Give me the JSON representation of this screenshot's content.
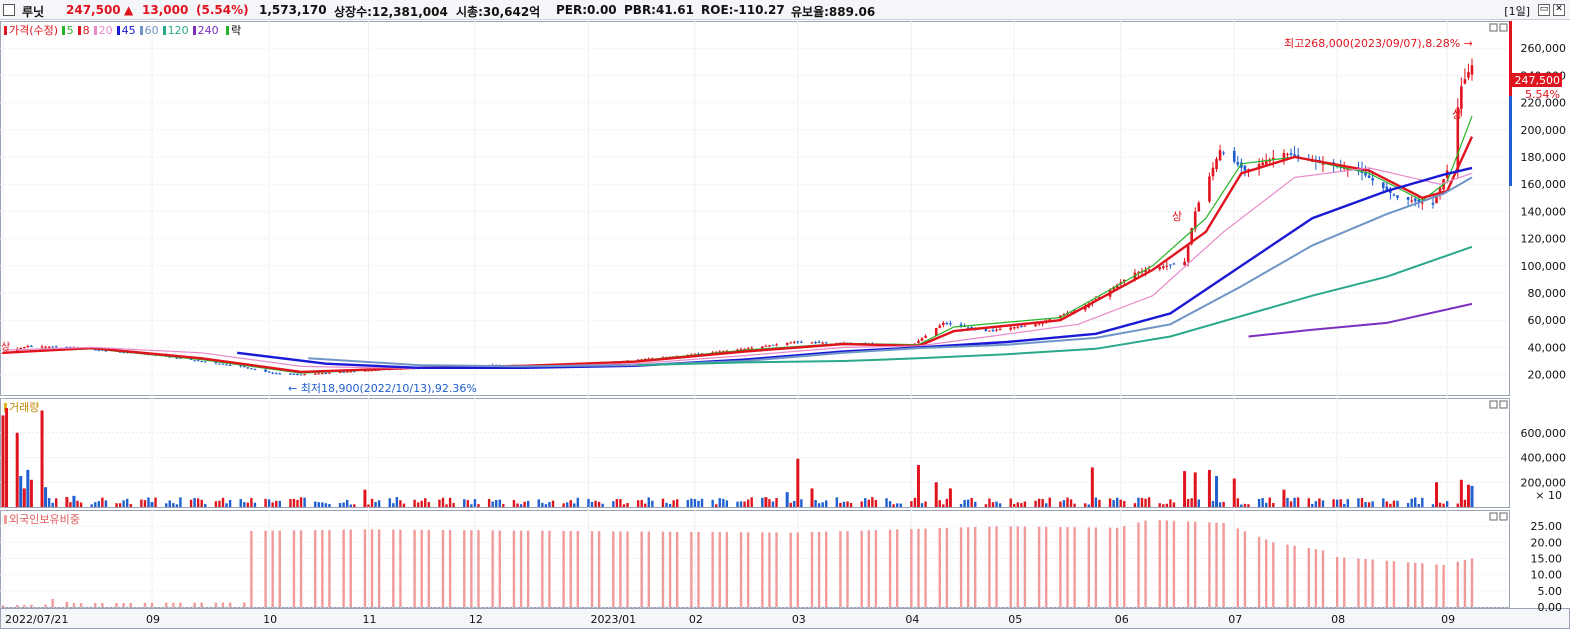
{
  "header": {
    "name": "루닛",
    "price": "247,500",
    "change_arrow": "▲",
    "change": "13,000",
    "change_pct": "(5.54%)",
    "volume": "1,573,170",
    "listed_shares": "상장수:12,381,004",
    "market_cap": "시총:30,642억",
    "per": "PER:0.00",
    "pbr": "PBR:41.61",
    "roe": "ROE:-110.27",
    "float_rate": "유보율:889.06",
    "timeframe": "[1일]"
  },
  "legend": {
    "price_label": "가격(수정)",
    "ma": [
      {
        "label": "5",
        "color": "#27b327"
      },
      {
        "label": "8",
        "color": "#e0141e"
      },
      {
        "label": "20",
        "color": "#e889c9"
      },
      {
        "label": "45",
        "color": "#1a1ad6"
      },
      {
        "label": "60",
        "color": "#6f95c6"
      },
      {
        "label": "120",
        "color": "#2aa88a"
      },
      {
        "label": "240",
        "color": "#7b2fbf"
      }
    ],
    "down_label": "락",
    "volume_label": "거래량",
    "foreign_label": "외국인보유비중"
  },
  "colors": {
    "up": "#e0141e",
    "down": "#1f5fcf",
    "foreign_bar": "#f29a9a"
  },
  "chart_data": [
    {
      "type": "line",
      "panel": "price",
      "y_ticks": [
        20000,
        40000,
        60000,
        80000,
        100000,
        120000,
        140000,
        160000,
        180000,
        200000,
        220000,
        240000,
        260000
      ],
      "y_tick_labels": [
        "20,000",
        "40,000",
        "60,000",
        "80,000",
        "100,000",
        "120,000",
        "140,000",
        "160,000",
        "180,000",
        "200,000",
        "220,000",
        "240,000",
        "260,000"
      ],
      "ylim": [
        5000,
        280000
      ],
      "price_points": [
        [
          "2022-07-21",
          36000
        ],
        [
          "2022-07-28",
          41000
        ],
        [
          "2022-08-08",
          40000
        ],
        [
          "2022-08-22",
          37000
        ],
        [
          "2022-09-01",
          35000
        ],
        [
          "2022-09-14",
          30000
        ],
        [
          "2022-09-26",
          26000
        ],
        [
          "2022-10-05",
          21000
        ],
        [
          "2022-10-13",
          20000
        ],
        [
          "2022-10-25",
          22000
        ],
        [
          "2022-11-07",
          24000
        ],
        [
          "2022-11-21",
          26000
        ],
        [
          "2022-12-05",
          27000
        ],
        [
          "2022-12-19",
          26000
        ],
        [
          "2023-01-02",
          27000
        ],
        [
          "2023-01-16",
          31000
        ],
        [
          "2023-02-01",
          35000
        ],
        [
          "2023-02-15",
          39000
        ],
        [
          "2023-03-01",
          44000
        ],
        [
          "2023-03-15",
          43000
        ],
        [
          "2023-04-03",
          41000
        ],
        [
          "2023-04-12",
          58000
        ],
        [
          "2023-04-24",
          52000
        ],
        [
          "2023-05-08",
          57000
        ],
        [
          "2023-05-22",
          70000
        ],
        [
          "2023-06-05",
          95000
        ],
        [
          "2023-06-19",
          103000
        ],
        [
          "2023-06-22",
          140000
        ],
        [
          "2023-06-29",
          185000
        ],
        [
          "2023-07-06",
          170000
        ],
        [
          "2023-07-17",
          183000
        ],
        [
          "2023-07-28",
          175000
        ],
        [
          "2023-08-07",
          170000
        ],
        [
          "2023-08-18",
          150000
        ],
        [
          "2023-08-28",
          145000
        ],
        [
          "2023-09-01",
          170000
        ],
        [
          "2023-09-05",
          232000
        ],
        [
          "2023-09-08",
          247500
        ]
      ],
      "series": [
        {
          "name": "5",
          "color": "#27b327",
          "points": [
            [
              "2022-07-21",
              36000
            ],
            [
              "2022-08-15",
              39000
            ],
            [
              "2022-09-15",
              31000
            ],
            [
              "2022-10-13",
              21000
            ],
            [
              "2022-11-15",
              25000
            ],
            [
              "2022-12-15",
              26500
            ],
            [
              "2023-01-15",
              30000
            ],
            [
              "2023-02-15",
              38000
            ],
            [
              "2023-03-15",
              43000
            ],
            [
              "2023-04-05",
              42000
            ],
            [
              "2023-04-15",
              55000
            ],
            [
              "2023-05-15",
              62000
            ],
            [
              "2023-06-10",
              100000
            ],
            [
              "2023-06-25",
              135000
            ],
            [
              "2023-07-05",
              175000
            ],
            [
              "2023-07-20",
              180000
            ],
            [
              "2023-08-10",
              168000
            ],
            [
              "2023-08-25",
              148000
            ],
            [
              "2023-09-01",
              162000
            ],
            [
              "2023-09-08",
              210000
            ]
          ]
        },
        {
          "name": "8",
          "color": "#e0141e",
          "points": [
            [
              "2022-07-21",
              36000
            ],
            [
              "2022-08-15",
              39500
            ],
            [
              "2022-09-15",
              32000
            ],
            [
              "2022-10-13",
              22000
            ],
            [
              "2022-11-15",
              25000
            ],
            [
              "2022-12-15",
              26500
            ],
            [
              "2023-01-15",
              29500
            ],
            [
              "2023-02-15",
              37000
            ],
            [
              "2023-03-15",
              42500
            ],
            [
              "2023-04-05",
              41000
            ],
            [
              "2023-04-15",
              52000
            ],
            [
              "2023-05-15",
              60000
            ],
            [
              "2023-06-10",
              97000
            ],
            [
              "2023-06-25",
              125000
            ],
            [
              "2023-07-05",
              168000
            ],
            [
              "2023-07-20",
              180000
            ],
            [
              "2023-08-10",
              170000
            ],
            [
              "2023-08-25",
              150000
            ],
            [
              "2023-09-01",
              155000
            ],
            [
              "2023-09-08",
              195000
            ]
          ]
        },
        {
          "name": "20",
          "color": "#e889c9",
          "points": [
            [
              "2022-07-21",
              38000
            ],
            [
              "2022-08-15",
              40000
            ],
            [
              "2022-09-15",
              36000
            ],
            [
              "2022-10-13",
              26000
            ],
            [
              "2022-11-15",
              24500
            ],
            [
              "2022-12-15",
              26000
            ],
            [
              "2023-01-15",
              28000
            ],
            [
              "2023-02-15",
              34000
            ],
            [
              "2023-03-15",
              40000
            ],
            [
              "2023-04-05",
              41000
            ],
            [
              "2023-04-25",
              48000
            ],
            [
              "2023-05-20",
              57000
            ],
            [
              "2023-06-10",
              78000
            ],
            [
              "2023-06-30",
              125000
            ],
            [
              "2023-07-20",
              165000
            ],
            [
              "2023-08-10",
              172000
            ],
            [
              "2023-08-30",
              160000
            ],
            [
              "2023-09-08",
              168000
            ]
          ]
        },
        {
          "name": "45",
          "color": "#1a1ad6",
          "points": [
            [
              "2022-09-25",
              36000
            ],
            [
              "2022-10-20",
              28000
            ],
            [
              "2022-11-15",
              25000
            ],
            [
              "2022-12-15",
              25000
            ],
            [
              "2023-01-15",
              26500
            ],
            [
              "2023-02-15",
              31000
            ],
            [
              "2023-03-15",
              37000
            ],
            [
              "2023-04-05",
              40000
            ],
            [
              "2023-04-30",
              44000
            ],
            [
              "2023-05-25",
              50000
            ],
            [
              "2023-06-15",
              65000
            ],
            [
              "2023-07-05",
              100000
            ],
            [
              "2023-07-25",
              135000
            ],
            [
              "2023-08-15",
              155000
            ],
            [
              "2023-08-31",
              167000
            ],
            [
              "2023-09-08",
              172000
            ]
          ]
        },
        {
          "name": "60",
          "color": "#6f95c6",
          "points": [
            [
              "2022-10-15",
              32000
            ],
            [
              "2022-11-15",
              27000
            ],
            [
              "2022-12-15",
              26000
            ],
            [
              "2023-01-15",
              27000
            ],
            [
              "2023-02-15",
              30000
            ],
            [
              "2023-03-15",
              36000
            ],
            [
              "2023-04-05",
              39500
            ],
            [
              "2023-04-30",
              42000
            ],
            [
              "2023-05-25",
              47000
            ],
            [
              "2023-06-15",
              57000
            ],
            [
              "2023-07-05",
              85000
            ],
            [
              "2023-07-25",
              115000
            ],
            [
              "2023-08-15",
              138000
            ],
            [
              "2023-08-31",
              153000
            ],
            [
              "2023-09-08",
              165000
            ]
          ]
        },
        {
          "name": "120",
          "color": "#2aa88a",
          "points": [
            [
              "2023-01-16",
              27000
            ],
            [
              "2023-02-15",
              29000
            ],
            [
              "2023-03-15",
              30000
            ],
            [
              "2023-04-05",
              32000
            ],
            [
              "2023-04-30",
              35000
            ],
            [
              "2023-05-25",
              39000
            ],
            [
              "2023-06-15",
              48000
            ],
            [
              "2023-07-05",
              63000
            ],
            [
              "2023-07-25",
              78000
            ],
            [
              "2023-08-15",
              92000
            ],
            [
              "2023-09-08",
              114000
            ]
          ]
        },
        {
          "name": "240",
          "color": "#7b2fbf",
          "points": [
            [
              "2023-07-07",
              48000
            ],
            [
              "2023-07-25",
              53000
            ],
            [
              "2023-08-15",
              58000
            ],
            [
              "2023-09-08",
              72000
            ]
          ]
        }
      ],
      "annotations": {
        "high": "최고268,000(2023/09/07),8.28%",
        "low": "최저18,900(2022/10/13),92.36%",
        "last_price": "247,500",
        "last_pct": "5.54%",
        "limit_up": "상"
      }
    },
    {
      "type": "bar",
      "panel": "volume",
      "y_ticks": [
        200000,
        400000,
        600000
      ],
      "y_tick_labels": [
        "200,000",
        "400,000",
        "600,000"
      ],
      "y_unit": "× 10",
      "ylim": [
        0,
        800000
      ],
      "bars": [
        [
          "2022-07-21",
          740000,
          "up"
        ],
        [
          "2022-07-22",
          800000,
          "up"
        ],
        [
          "2022-07-25",
          600000,
          "up"
        ],
        [
          "2022-07-26",
          250000,
          "down"
        ],
        [
          "2022-07-27",
          150000,
          "up"
        ],
        [
          "2022-07-28",
          300000,
          "down"
        ],
        [
          "2022-07-29",
          220000,
          "up"
        ],
        [
          "2022-08-01",
          780000,
          "up"
        ],
        [
          "2022-08-02",
          160000,
          "down"
        ],
        [
          "2022-08-08",
          80000,
          "up"
        ],
        [
          "2022-08-10",
          90000,
          "down"
        ],
        [
          "2022-09-01",
          40000,
          "down"
        ],
        [
          "2022-10-31",
          140000,
          "up"
        ],
        [
          "2023-02-21",
          80000,
          "up"
        ],
        [
          "2023-02-27",
          120000,
          "down"
        ],
        [
          "2023-03-02",
          390000,
          "up"
        ],
        [
          "2023-03-06",
          150000,
          "up"
        ],
        [
          "2023-04-05",
          340000,
          "up"
        ],
        [
          "2023-04-10",
          200000,
          "up"
        ],
        [
          "2023-04-14",
          150000,
          "up"
        ],
        [
          "2023-05-24",
          320000,
          "up"
        ],
        [
          "2023-06-19",
          290000,
          "up"
        ],
        [
          "2023-06-22",
          280000,
          "up"
        ],
        [
          "2023-06-26",
          300000,
          "up"
        ],
        [
          "2023-06-28",
          250000,
          "down"
        ],
        [
          "2023-07-03",
          230000,
          "up"
        ],
        [
          "2023-07-17",
          140000,
          "up"
        ],
        [
          "2023-08-29",
          200000,
          "up"
        ],
        [
          "2023-09-05",
          220000,
          "up"
        ],
        [
          "2023-09-07",
          180000,
          "up"
        ],
        [
          "2023-09-08",
          170000,
          "down"
        ]
      ]
    },
    {
      "type": "bar",
      "panel": "foreign_ratio",
      "y_ticks": [
        0,
        5,
        10,
        15,
        20,
        25
      ],
      "y_tick_labels": [
        "0.00",
        "5.00",
        "10.00",
        "15.00",
        "20.00",
        "25.00"
      ],
      "ylim": [
        0,
        30
      ],
      "points": [
        [
          "2022-07-21",
          0.5
        ],
        [
          "2022-08-03",
          0.8
        ],
        [
          "2022-08-04",
          2.5
        ],
        [
          "2022-08-10",
          1.2
        ],
        [
          "2022-09-26",
          1.4
        ],
        [
          "2022-09-27",
          23.5
        ],
        [
          "2022-10-31",
          24.0
        ],
        [
          "2022-12-30",
          23.5
        ],
        [
          "2023-02-28",
          23.0
        ],
        [
          "2023-03-31",
          24.0
        ],
        [
          "2023-04-28",
          25.0
        ],
        [
          "2023-05-31",
          24.5
        ],
        [
          "2023-06-09",
          27.0
        ],
        [
          "2023-06-30",
          26.0
        ],
        [
          "2023-07-14",
          20.0
        ],
        [
          "2023-07-31",
          17.0
        ],
        [
          "2023-08-01",
          15.5
        ],
        [
          "2023-08-31",
          13.0
        ],
        [
          "2023-09-08",
          15.0
        ]
      ]
    }
  ],
  "x_axis": {
    "ticks": [
      {
        "date": "2022-07-21",
        "label": "2022/07/21"
      },
      {
        "date": "2022-09-01",
        "label": "09"
      },
      {
        "date": "2022-10-04",
        "label": "10"
      },
      {
        "date": "2022-11-01",
        "label": "11"
      },
      {
        "date": "2022-12-01",
        "label": "12"
      },
      {
        "date": "2023-01-02",
        "label": "2023/01"
      },
      {
        "date": "2023-02-01",
        "label": "02"
      },
      {
        "date": "2023-03-02",
        "label": "03"
      },
      {
        "date": "2023-04-03",
        "label": "04"
      },
      {
        "date": "2023-05-02",
        "label": "05"
      },
      {
        "date": "2023-06-01",
        "label": "06"
      },
      {
        "date": "2023-07-03",
        "label": "07"
      },
      {
        "date": "2023-08-01",
        "label": "08"
      },
      {
        "date": "2023-09-01",
        "label": "09"
      }
    ]
  }
}
